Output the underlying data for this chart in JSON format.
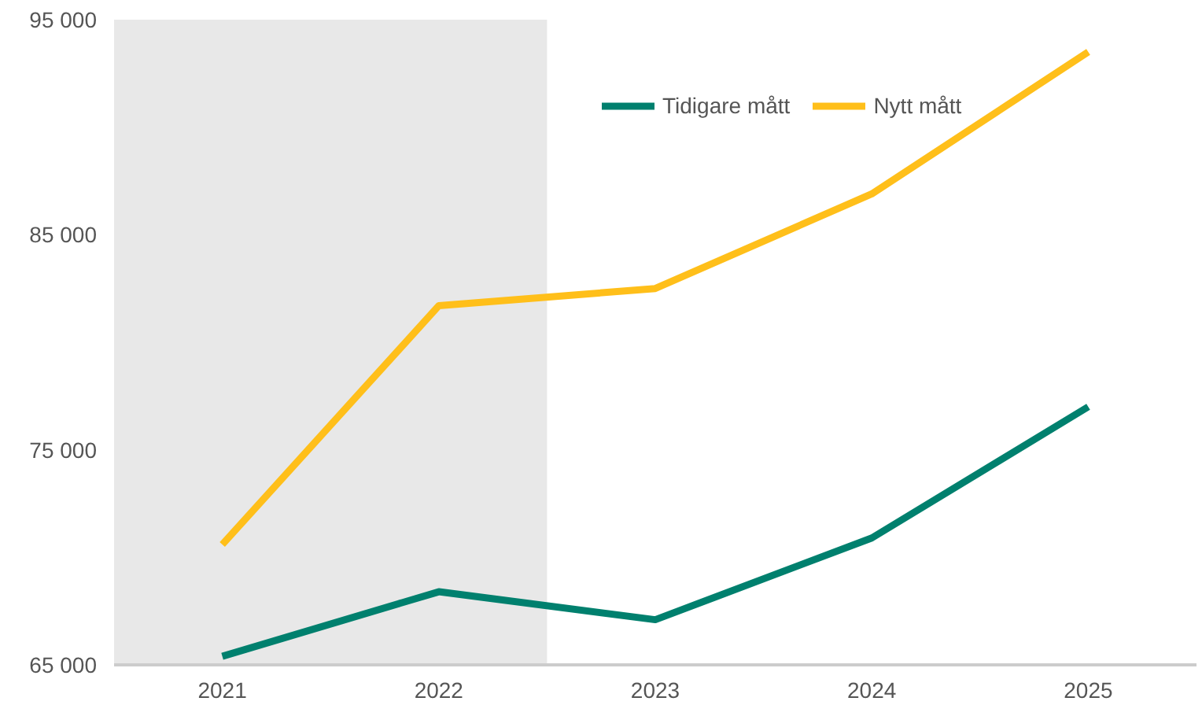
{
  "chart_data": {
    "type": "line",
    "x": [
      2021,
      2022,
      2023,
      2024,
      2025
    ],
    "xlim": [
      2020.5,
      2025.5
    ],
    "xticks": [
      2021,
      2022,
      2023,
      2024,
      2025
    ],
    "ylim": [
      65000,
      95000
    ],
    "yticks": [
      {
        "value": 65000,
        "label": "65 000"
      },
      {
        "value": 75000,
        "label": "75 000"
      },
      {
        "value": 85000,
        "label": "85 000"
      },
      {
        "value": 95000,
        "label": "95 000"
      }
    ],
    "series": [
      {
        "name": "Tidigare mått",
        "color": "#00806e",
        "values": [
          65400,
          68400,
          67100,
          70900,
          77000
        ]
      },
      {
        "name": "Nytt mått",
        "color": "#ffbf1a",
        "values": [
          70600,
          81700,
          82500,
          86900,
          93500
        ]
      }
    ],
    "bands": [
      {
        "axis": "x",
        "from": 2020.5,
        "to": 2022.5,
        "color": "#e8e8e8"
      }
    ],
    "grid": false,
    "legend": "top",
    "marker": "none",
    "line_style": "solid"
  }
}
